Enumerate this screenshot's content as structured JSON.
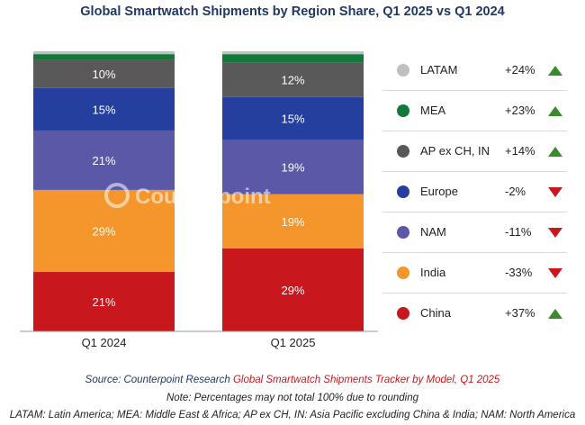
{
  "chart_data": {
    "type": "bar",
    "stacked": true,
    "title": "Global Smartwatch Shipments by Region Share, Q1 2025 vs Q1 2024",
    "categories": [
      "Q1 2024",
      "Q1 2025"
    ],
    "series": [
      {
        "name": "China",
        "values": [
          21,
          29
        ],
        "labels": [
          "21%",
          "29%"
        ],
        "color": "#c8171d"
      },
      {
        "name": "India",
        "values": [
          29,
          19
        ],
        "labels": [
          "29%",
          "19%"
        ],
        "color": "#f5962c"
      },
      {
        "name": "NAM",
        "values": [
          21,
          19
        ],
        "labels": [
          "21%",
          "19%"
        ],
        "color": "#5b58a8"
      },
      {
        "name": "Europe",
        "values": [
          15,
          15
        ],
        "labels": [
          "15%",
          "15%"
        ],
        "color": "#253f9e"
      },
      {
        "name": "AP ex CH, IN",
        "values": [
          10,
          12
        ],
        "labels": [
          "10%",
          "12%"
        ],
        "color": "#595959"
      },
      {
        "name": "MEA",
        "values": [
          2,
          3
        ],
        "labels": [
          "",
          ""
        ],
        "color": "#12793a"
      },
      {
        "name": "LATAM",
        "values": [
          1,
          1
        ],
        "labels": [
          "",
          ""
        ],
        "color": "#bfbfbf"
      }
    ],
    "legend": [
      {
        "name": "LATAM",
        "change": "+24%",
        "direction": "up",
        "color": "#bfbfbf"
      },
      {
        "name": "MEA",
        "change": "+23%",
        "direction": "up",
        "color": "#12793a"
      },
      {
        "name": "AP ex CH, IN",
        "change": "+14%",
        "direction": "up",
        "color": "#595959"
      },
      {
        "name": "Europe",
        "change": "-2%",
        "direction": "down",
        "color": "#253f9e"
      },
      {
        "name": "NAM",
        "change": "-11%",
        "direction": "down",
        "color": "#5b58a8"
      },
      {
        "name": "India",
        "change": "-33%",
        "direction": "down",
        "color": "#f5962c"
      },
      {
        "name": "China",
        "change": "+37%",
        "direction": "up",
        "color": "#c8171d"
      }
    ],
    "legend_position": "right",
    "ylim": [
      0,
      100
    ],
    "grid": false
  },
  "watermark": "Counterpoint",
  "footer": {
    "source_prefix": "Source: Counterpoint Research ",
    "source_tracker": "Global Smartwatch Shipments Tracker by Model, Q1 2025",
    "note": "Note: Percentages may not total 100% due to rounding",
    "abbreviations": "LATAM: Latin America; MEA: Middle East & Africa; AP ex CH, IN: Asia Pacific excluding China & India; NAM: North America"
  }
}
